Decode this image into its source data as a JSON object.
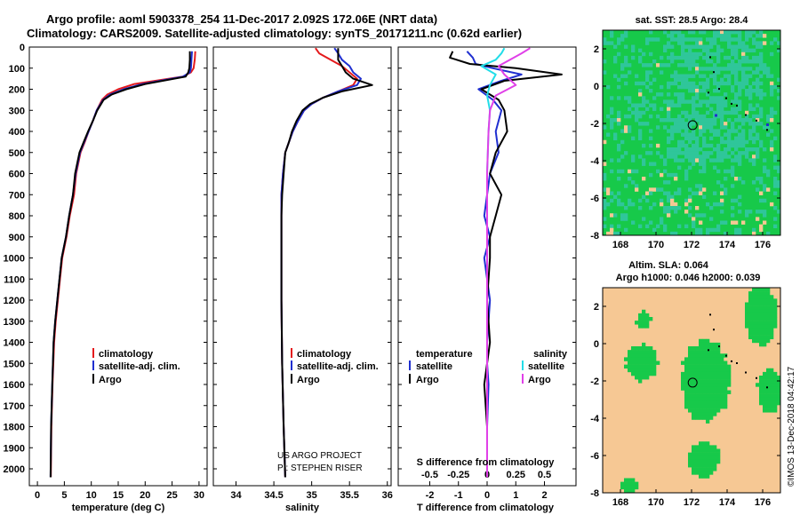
{
  "titles": {
    "line1": "Argo profile: aoml 5903378_254 11-Dec-2017 2.092S 172.06E (NRT data)",
    "line2": "Climatology: CARS2009. Satellite-adjusted climatology: synTS_20171211.nc (0.62d earlier)"
  },
  "colors": {
    "climatology": "#e41a1c",
    "satellite": "#1f2fd0",
    "argo": "#000000",
    "sat_salinity": "#22dde8",
    "argo_salinity_diff": "#e040e8",
    "ocean_green": "#17c94a",
    "ocean_teal": "#2fc69a",
    "land": "#f6c894",
    "sla_bg": "#f6c894",
    "sla_green": "#17c94a"
  },
  "depth_axis": {
    "ticks": [
      "0",
      "100",
      "200",
      "300",
      "400",
      "500",
      "600",
      "700",
      "800",
      "900",
      "1000",
      "1100",
      "1200",
      "1300",
      "1400",
      "1500",
      "1600",
      "1700",
      "1800",
      "1900",
      "2000"
    ],
    "range": [
      0,
      2080
    ]
  },
  "chart_data": [
    {
      "type": "line",
      "id": "temperature",
      "xlabel": "temperature (deg C)",
      "xlim": [
        -1.5,
        31.5
      ],
      "xticks": [
        "0",
        "5",
        "10",
        "15",
        "20",
        "25",
        "30"
      ],
      "legend": [
        "climatology",
        "satellite-adj. clim.",
        "Argo"
      ],
      "series": [
        {
          "name": "climatology",
          "color_key": "climatology",
          "x": [
            29.3,
            29.2,
            29.0,
            28.5,
            27.0,
            18.0,
            15.0,
            13.0,
            12.0,
            11.0,
            10.3,
            9.5,
            8.8,
            8.0,
            7.2,
            6.8,
            6.0,
            5.4,
            4.6,
            4.2,
            3.8,
            3.4,
            3.1,
            2.8,
            2.6,
            2.5
          ],
          "y": [
            20,
            60,
            100,
            120,
            140,
            175,
            200,
            225,
            250,
            300,
            350,
            400,
            450,
            500,
            600,
            700,
            800,
            900,
            1000,
            1100,
            1200,
            1300,
            1400,
            1600,
            1800,
            2040
          ]
        },
        {
          "name": "satellite-adj. clim.",
          "color_key": "satellite",
          "x": [
            28.7,
            28.6,
            28.5,
            28.3,
            27.0,
            19.5,
            16.0,
            13.5,
            12.2,
            11.0,
            10.3,
            9.5,
            8.7,
            7.9,
            7.1,
            6.6,
            5.9,
            5.3,
            4.5,
            4.1,
            3.7,
            3.3,
            3.0,
            2.75,
            2.55,
            2.45
          ],
          "y": [
            20,
            60,
            100,
            120,
            140,
            175,
            200,
            225,
            250,
            300,
            350,
            400,
            450,
            500,
            600,
            700,
            800,
            900,
            1000,
            1100,
            1200,
            1300,
            1400,
            1600,
            1800,
            2040
          ]
        },
        {
          "name": "Argo",
          "color_key": "argo",
          "x": [
            28.3,
            28.3,
            28.2,
            28.0,
            27.5,
            20.0,
            16.5,
            13.8,
            12.3,
            11.1,
            10.3,
            9.4,
            8.6,
            7.8,
            7.0,
            6.6,
            5.9,
            5.3,
            4.5,
            4.1,
            3.7,
            3.3,
            3.0,
            2.75,
            2.55,
            2.45
          ],
          "y": [
            20,
            60,
            100,
            120,
            140,
            175,
            200,
            225,
            250,
            300,
            350,
            400,
            450,
            500,
            600,
            700,
            800,
            900,
            1000,
            1100,
            1200,
            1300,
            1400,
            1600,
            1800,
            2040
          ]
        }
      ]
    },
    {
      "type": "line",
      "id": "salinity",
      "xlabel": "salinity",
      "xlim": [
        33.7,
        36.05
      ],
      "xticks": [
        "34",
        "34.5",
        "35",
        "35.5",
        "36"
      ],
      "legend": [
        "climatology",
        "satellite-adj. clim.",
        "Argo"
      ],
      "credit": [
        "US ARGO PROJECT",
        "PI: STEPHEN RISER"
      ],
      "series": [
        {
          "name": "climatology",
          "color_key": "climatology",
          "x": [
            35.05,
            35.1,
            35.25,
            35.4,
            35.5,
            35.6,
            35.55,
            35.35,
            35.15,
            35.0,
            34.9,
            34.82,
            34.75,
            34.7,
            34.65,
            34.62,
            34.6,
            34.6,
            34.6,
            34.6,
            34.61,
            34.63,
            34.65
          ],
          "y": [
            5,
            30,
            60,
            90,
            120,
            150,
            180,
            210,
            240,
            270,
            300,
            350,
            400,
            450,
            500,
            600,
            700,
            800,
            1000,
            1200,
            1500,
            1800,
            2040
          ]
        },
        {
          "name": "satellite-adj. clim.",
          "color_key": "satellite",
          "x": [
            35.3,
            35.35,
            35.4,
            35.5,
            35.55,
            35.65,
            35.6,
            35.35,
            35.15,
            35.0,
            34.9,
            34.82,
            34.75,
            34.7,
            34.65,
            34.62,
            34.6,
            34.6,
            34.6,
            34.6,
            34.61,
            34.63,
            34.65
          ],
          "y": [
            5,
            30,
            60,
            90,
            120,
            150,
            180,
            210,
            240,
            270,
            300,
            350,
            400,
            450,
            500,
            600,
            700,
            800,
            1000,
            1200,
            1500,
            1800,
            2040
          ]
        },
        {
          "name": "Argo",
          "color_key": "argo",
          "x": [
            35.35,
            35.35,
            35.35,
            35.4,
            35.45,
            35.55,
            35.8,
            35.4,
            35.15,
            34.98,
            34.88,
            34.8,
            34.74,
            34.7,
            34.65,
            34.63,
            34.61,
            34.6,
            34.6,
            34.6,
            34.61,
            34.63,
            34.65
          ],
          "y": [
            5,
            30,
            60,
            90,
            120,
            150,
            180,
            210,
            240,
            270,
            300,
            350,
            400,
            450,
            500,
            600,
            700,
            800,
            1000,
            1200,
            1500,
            1800,
            2040
          ]
        }
      ]
    },
    {
      "type": "line",
      "id": "differences",
      "xlabel": "T difference from climatology",
      "xlabel_top": "S difference from climatology",
      "xlim": [
        -3.1,
        3.1
      ],
      "xticks": [
        "-2",
        "-1",
        "0",
        "1",
        "2"
      ],
      "xticks_top": [
        "-0.5",
        "-0.25",
        "0",
        "0.25",
        "0.5"
      ],
      "legend_left_title": "temperature",
      "legend_right_title": "salinity",
      "legend_left": [
        "satellite",
        "Argo"
      ],
      "legend_right": [
        "satellite",
        "Argo"
      ],
      "series": [
        {
          "name": "T satellite",
          "color_key": "satellite",
          "x": [
            -0.7,
            -0.5,
            -0.4,
            0.2,
            1.2,
            0.5,
            -0.3,
            0.2,
            0.5,
            0.3,
            0.4,
            0.1,
            0.0,
            -0.1,
            0.1,
            -0.1,
            0.1,
            0.0,
            0.0,
            0.05,
            0.0,
            0.0
          ],
          "y": [
            20,
            50,
            80,
            100,
            130,
            160,
            200,
            250,
            300,
            400,
            500,
            600,
            700,
            800,
            900,
            1000,
            1200,
            1400,
            1500,
            1600,
            1800,
            2040
          ]
        },
        {
          "name": "T Argo",
          "color_key": "argo",
          "x": [
            -1.2,
            -1.3,
            -0.6,
            1.0,
            2.6,
            0.6,
            -0.2,
            0.4,
            0.6,
            0.7,
            0.3,
            0.1,
            0.5,
            0.3,
            0.1,
            0.1,
            0.0,
            0.1,
            0.0,
            -0.1,
            0.0,
            0.0
          ],
          "y": [
            20,
            50,
            80,
            100,
            130,
            160,
            200,
            250,
            300,
            400,
            500,
            600,
            700,
            800,
            900,
            1000,
            1200,
            1400,
            1500,
            1600,
            1800,
            2040
          ]
        },
        {
          "name": "S satellite",
          "color_key": "sat_salinity",
          "x": [
            0.6,
            0.5,
            0.3,
            -0.2,
            0.3,
            0.1,
            0.0,
            0.1,
            0.05,
            0.0,
            0.0,
            0.0,
            0.0,
            0.0
          ],
          "y": [
            5,
            30,
            60,
            90,
            130,
            180,
            230,
            300,
            400,
            600,
            800,
            1200,
            1600,
            2040
          ]
        },
        {
          "name": "S Argo",
          "color_key": "argo_salinity_diff",
          "x": [
            1.5,
            1.2,
            0.8,
            0.4,
            0.6,
            1.0,
            0.3,
            0.1,
            0.05,
            0.0,
            0.0,
            0.0,
            0.0,
            0.0
          ],
          "y": [
            5,
            30,
            60,
            90,
            130,
            180,
            230,
            300,
            400,
            600,
            800,
            1200,
            1600,
            2040
          ]
        }
      ]
    },
    {
      "type": "heatmap",
      "id": "sst_map",
      "title": "sat. SST: 28.5 Argo: 28.4",
      "xlim": [
        167,
        177
      ],
      "ylim": [
        -8,
        3
      ],
      "xticks": [
        "168",
        "170",
        "172",
        "174",
        "176"
      ],
      "yticks": [
        "-8",
        "-6",
        "-4",
        "-2",
        "0",
        "2"
      ],
      "argo_position": [
        172.06,
        -2.092
      ]
    },
    {
      "type": "heatmap",
      "id": "sla_map",
      "title_line1": "Altim. SLA: 0.064",
      "title_line2": "Argo h1000: 0.046 h2000: 0.039",
      "xlim": [
        167,
        177
      ],
      "ylim": [
        -8,
        3
      ],
      "xticks": [
        "168",
        "170",
        "172",
        "174",
        "176"
      ],
      "yticks": [
        "-8",
        "-6",
        "-4",
        "-2",
        "0",
        "2"
      ],
      "argo_position": [
        172.06,
        -2.092
      ]
    }
  ],
  "footer": {
    "imos_stamp": "©IMOS 13-Dec-2018 04:42:17"
  }
}
